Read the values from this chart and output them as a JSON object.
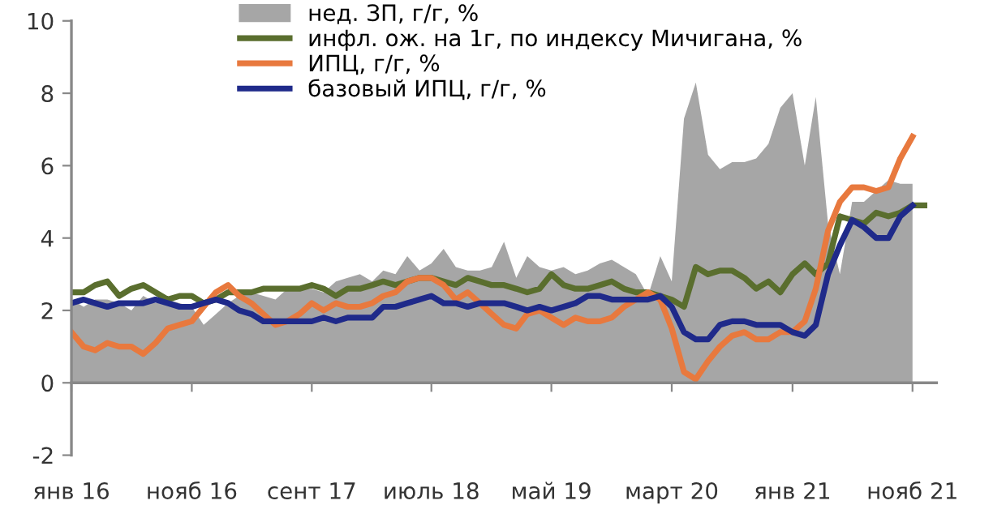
{
  "chart_data": {
    "type": "line",
    "x": [
      "2016-01",
      "2016-02",
      "2016-03",
      "2016-04",
      "2016-05",
      "2016-06",
      "2016-07",
      "2016-08",
      "2016-09",
      "2016-10",
      "2016-11",
      "2016-12",
      "2017-01",
      "2017-02",
      "2017-03",
      "2017-04",
      "2017-05",
      "2017-06",
      "2017-07",
      "2017-08",
      "2017-09",
      "2017-10",
      "2017-11",
      "2017-12",
      "2018-01",
      "2018-02",
      "2018-03",
      "2018-04",
      "2018-05",
      "2018-06",
      "2018-07",
      "2018-08",
      "2018-09",
      "2018-10",
      "2018-11",
      "2018-12",
      "2019-01",
      "2019-02",
      "2019-03",
      "2019-04",
      "2019-05",
      "2019-06",
      "2019-07",
      "2019-08",
      "2019-09",
      "2019-10",
      "2019-11",
      "2019-12",
      "2020-01",
      "2020-02",
      "2020-03",
      "2020-04",
      "2020-05",
      "2020-06",
      "2020-07",
      "2020-08",
      "2020-09",
      "2020-10",
      "2020-11",
      "2020-12",
      "2021-01",
      "2021-02",
      "2021-03",
      "2021-04",
      "2021-05",
      "2021-06",
      "2021-07",
      "2021-08",
      "2021-09",
      "2021-10",
      "2021-11",
      "2021-12"
    ],
    "series": [
      {
        "name": "нед. ЗП, г/г, %",
        "type": "area",
        "color": "#a6a6a6",
        "values": [
          2.3,
          2.1,
          2.3,
          2.3,
          2.2,
          2.0,
          2.4,
          2.2,
          2.3,
          2.2,
          2.1,
          1.6,
          1.9,
          2.2,
          2.4,
          2.5,
          2.4,
          2.3,
          2.6,
          2.6,
          2.6,
          2.5,
          2.8,
          2.9,
          3.0,
          2.8,
          3.1,
          3.0,
          3.5,
          3.1,
          3.3,
          3.7,
          3.2,
          3.1,
          3.1,
          3.2,
          3.9,
          2.9,
          3.5,
          3.2,
          3.1,
          3.2,
          3.0,
          3.1,
          3.3,
          3.4,
          3.2,
          3.0,
          2.4,
          3.5,
          2.8,
          7.3,
          8.3,
          6.3,
          5.9,
          6.1,
          6.1,
          6.2,
          6.6,
          7.6,
          8.0,
          6.0,
          7.9,
          4.4,
          3.0,
          5.0,
          5.0,
          5.3,
          5.6,
          5.5,
          5.5,
          null
        ]
      },
      {
        "name": "инфл. ож. на 1г, по индексу Мичигана, %",
        "color": "#5a6e2e",
        "values": [
          2.5,
          2.5,
          2.7,
          2.8,
          2.4,
          2.6,
          2.7,
          2.5,
          2.3,
          2.4,
          2.4,
          2.2,
          2.3,
          2.5,
          2.5,
          2.5,
          2.6,
          2.6,
          2.6,
          2.6,
          2.7,
          2.6,
          2.4,
          2.6,
          2.6,
          2.7,
          2.8,
          2.7,
          2.8,
          2.9,
          2.9,
          2.8,
          2.7,
          2.9,
          2.8,
          2.7,
          2.7,
          2.6,
          2.5,
          2.6,
          3.0,
          2.7,
          2.6,
          2.6,
          2.7,
          2.8,
          2.6,
          2.5,
          2.5,
          2.4,
          2.3,
          2.1,
          3.2,
          3.0,
          3.1,
          3.1,
          2.9,
          2.6,
          2.8,
          2.5,
          3.0,
          3.3,
          3.0,
          3.3,
          4.6,
          4.5,
          4.4,
          4.7,
          4.6,
          4.7,
          4.9,
          4.9
        ]
      },
      {
        "name": "ИПЦ, г/г, %",
        "color": "#e8793e",
        "values": [
          1.4,
          1.0,
          0.9,
          1.1,
          1.0,
          1.0,
          0.8,
          1.1,
          1.5,
          1.6,
          1.7,
          2.1,
          2.5,
          2.7,
          2.4,
          2.2,
          1.9,
          1.6,
          1.7,
          1.9,
          2.2,
          2.0,
          2.2,
          2.1,
          2.1,
          2.2,
          2.4,
          2.5,
          2.8,
          2.9,
          2.9,
          2.7,
          2.3,
          2.5,
          2.2,
          1.9,
          1.6,
          1.5,
          1.9,
          2.0,
          1.8,
          1.6,
          1.8,
          1.7,
          1.7,
          1.8,
          2.1,
          2.3,
          2.5,
          2.3,
          1.5,
          0.3,
          0.1,
          0.6,
          1.0,
          1.3,
          1.4,
          1.2,
          1.2,
          1.4,
          1.4,
          1.7,
          2.6,
          4.2,
          5.0,
          5.4,
          5.4,
          5.3,
          5.4,
          6.2,
          6.8,
          null
        ]
      },
      {
        "name": "базовый ИПЦ, г/г, %",
        "color": "#1f2a8a",
        "values": [
          2.2,
          2.3,
          2.2,
          2.1,
          2.2,
          2.2,
          2.2,
          2.3,
          2.2,
          2.1,
          2.1,
          2.2,
          2.3,
          2.2,
          2.0,
          1.9,
          1.7,
          1.7,
          1.7,
          1.7,
          1.7,
          1.8,
          1.7,
          1.8,
          1.8,
          1.8,
          2.1,
          2.1,
          2.2,
          2.3,
          2.4,
          2.2,
          2.2,
          2.1,
          2.2,
          2.2,
          2.2,
          2.1,
          2.0,
          2.1,
          2.0,
          2.1,
          2.2,
          2.4,
          2.4,
          2.3,
          2.3,
          2.3,
          2.3,
          2.4,
          2.1,
          1.4,
          1.2,
          1.2,
          1.6,
          1.7,
          1.7,
          1.6,
          1.6,
          1.6,
          1.4,
          1.3,
          1.6,
          3.0,
          3.8,
          4.5,
          4.3,
          4.0,
          4.0,
          4.6,
          4.9,
          null
        ]
      }
    ],
    "xlim": [
      "2016-01",
      "2022-01"
    ],
    "xticks": [
      {
        "value": "2016-01",
        "label": "янв 16"
      },
      {
        "value": "2016-11",
        "label": "нояб 16"
      },
      {
        "value": "2017-09",
        "label": "сент 17"
      },
      {
        "value": "2018-07",
        "label": "июль 18"
      },
      {
        "value": "2019-05",
        "label": "май 19"
      },
      {
        "value": "2020-03",
        "label": "март 20"
      },
      {
        "value": "2021-01",
        "label": "янв 21"
      },
      {
        "value": "2021-11",
        "label": "нояб 21"
      }
    ],
    "ylim": [
      -2,
      10
    ],
    "yticks": [
      -2,
      0,
      2,
      4,
      6,
      8,
      10
    ],
    "legend": "top"
  }
}
